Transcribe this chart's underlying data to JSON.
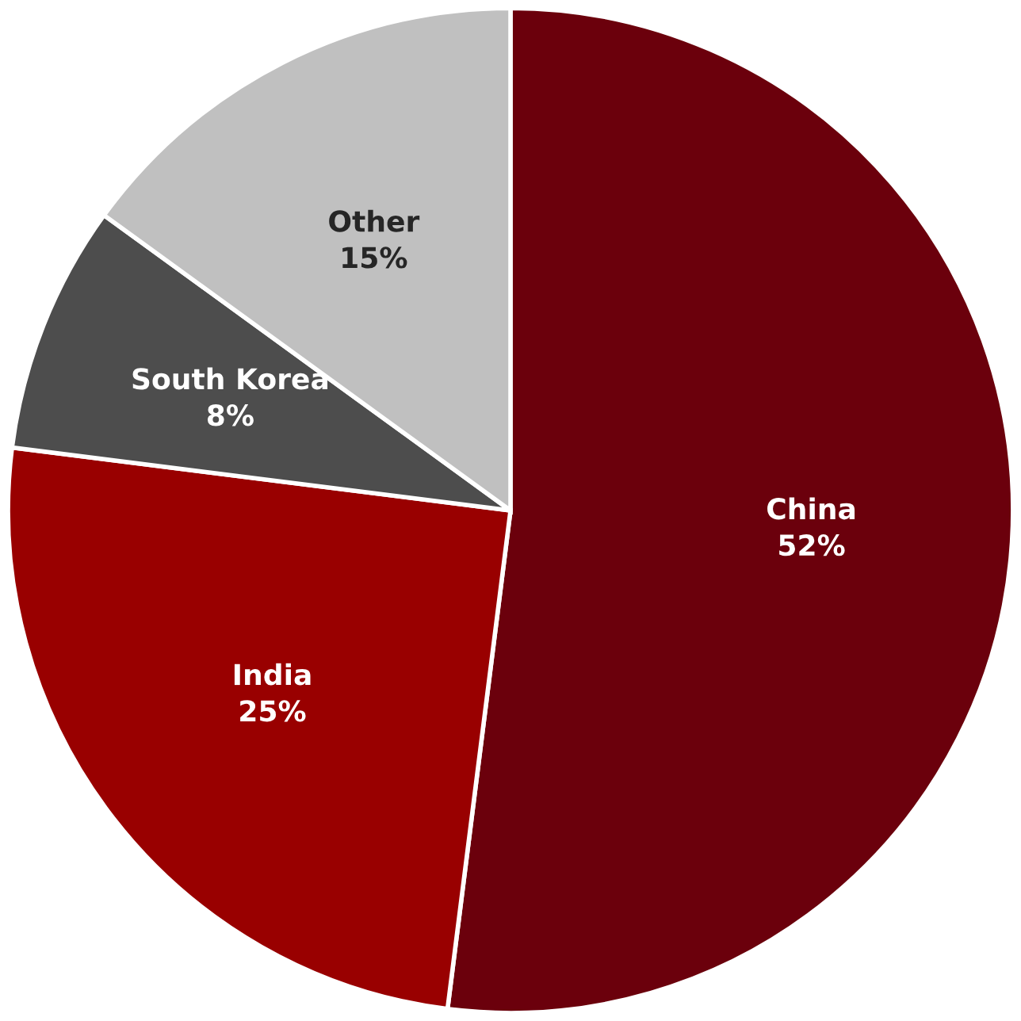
{
  "chart_data": {
    "type": "pie",
    "categories": [
      "China",
      "India",
      "South Korea",
      "Other"
    ],
    "values": [
      52,
      25,
      8,
      15
    ],
    "colors": [
      "#6b000c",
      "#990000",
      "#4d4d4d",
      "#c0c0c0"
    ],
    "value_labels": [
      "52%",
      "25%",
      "8%",
      "15%"
    ]
  }
}
